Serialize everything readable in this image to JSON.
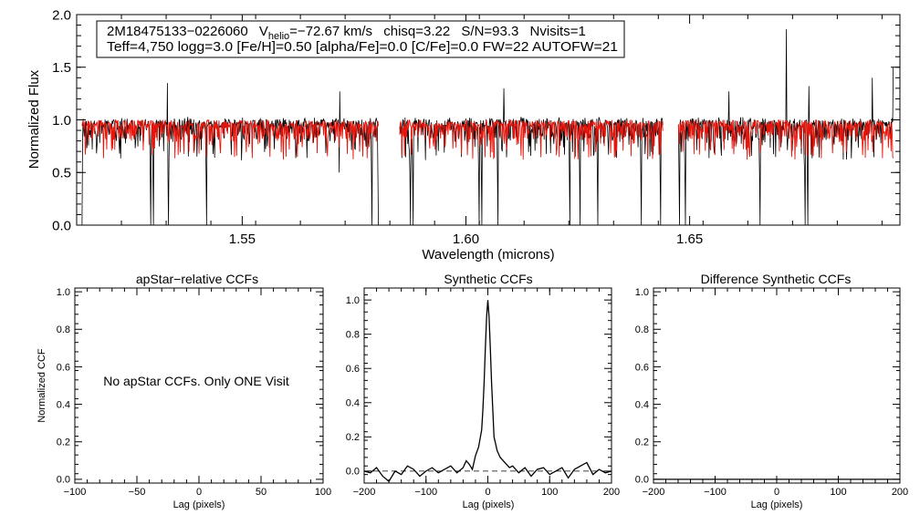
{
  "chart_data": [
    {
      "type": "line",
      "title": "",
      "xlabel": "Wavelength (microns)",
      "ylabel": "Normalized Flux",
      "xlim": [
        1.513,
        1.697
      ],
      "ylim": [
        0.0,
        2.0
      ],
      "xticks": [
        "1.55",
        "1.60",
        "1.65"
      ],
      "yticks": [
        "0.0",
        "0.5",
        "1.0",
        "1.5",
        "2.0"
      ],
      "info": {
        "star_id": "2M18475133−0226060",
        "vhelio_prefix": "V",
        "vhelio_sub": "helio",
        "vhelio_value": "=−72.67 km/s",
        "chisq": "chisq=3.22",
        "sn": "S/N=93.3",
        "nvisits": "Nvisits=1",
        "params_line": "Teff=4,750 logg=3.0 [Fe/H]=0.50 [alpha/Fe]=0.0 [C/Fe]=0.0 FW=22 AUTOFW=21"
      },
      "chips": [
        [
          1.5142,
          1.5805
        ],
        [
          1.5852,
          1.644
        ],
        [
          1.6475,
          1.6955
        ]
      ],
      "strong_lines": [
        1.5142,
        1.5296,
        1.5302,
        1.5335,
        1.542,
        1.5718,
        1.579,
        1.5805,
        1.5876,
        1.5882,
        1.603,
        1.6036,
        1.6072,
        1.6232,
        1.6255,
        1.6295,
        1.6392,
        1.6435,
        1.6478,
        1.649,
        1.6658,
        1.6758,
        1.6764
      ],
      "emission_spikes": [
        [
          1.5333,
          1.35
        ],
        [
          1.5718,
          1.27
        ],
        [
          1.6085,
          1.3
        ],
        [
          1.6588,
          1.27
        ],
        [
          1.6716,
          1.86
        ],
        [
          1.6766,
          1.32
        ],
        [
          1.6908,
          1.4
        ],
        [
          1.6955,
          1.5
        ]
      ],
      "series": [
        {
          "name": "observed spectrum",
          "color": "#000000"
        },
        {
          "name": "best-fit model",
          "color": "#e8150c"
        }
      ]
    },
    {
      "type": "line",
      "title": "apStar−relative CCFs",
      "xlabel": "Lag (pixels)",
      "ylabel": "Normalized CCF",
      "xlim": [
        -100,
        100
      ],
      "ylim": [
        -0.02,
        1.02
      ],
      "xticks": [
        "−100",
        "−50",
        "0",
        "50",
        "100"
      ],
      "yticks": [
        "0.0",
        "0.2",
        "0.4",
        "0.6",
        "0.8",
        "1.0"
      ],
      "message": "No apStar CCFs.  Only ONE Visit",
      "series": []
    },
    {
      "type": "line",
      "title": "Synthetic CCFs",
      "xlabel": "Lag (pixels)",
      "ylabel": "",
      "xlim": [
        -200,
        200
      ],
      "ylim": [
        -0.07,
        1.07
      ],
      "xticks": [
        "−200",
        "−100",
        "0",
        "100",
        "200"
      ],
      "yticks": [
        "0.0",
        "0.2",
        "0.4",
        "0.6",
        "0.8",
        "1.0"
      ],
      "peak": {
        "x": 0,
        "y": 1.0
      },
      "series": [
        {
          "name": "CCF",
          "x": [
            -200,
            -190,
            -180,
            -170,
            -160,
            -150,
            -140,
            -130,
            -120,
            -110,
            -100,
            -90,
            -80,
            -70,
            -60,
            -50,
            -40,
            -35,
            -30,
            -25,
            -20,
            -15,
            -10,
            -8,
            -6,
            -4,
            -2,
            0,
            2,
            4,
            6,
            8,
            10,
            15,
            20,
            25,
            30,
            35,
            40,
            50,
            60,
            70,
            80,
            90,
            100,
            110,
            120,
            130,
            140,
            150,
            160,
            170,
            180,
            190,
            200
          ],
          "y": [
            0.0,
            -0.01,
            0.02,
            -0.03,
            -0.06,
            0.0,
            -0.02,
            0.03,
            0.01,
            -0.03,
            0.0,
            0.02,
            -0.01,
            0.01,
            0.03,
            -0.01,
            0.02,
            0.06,
            0.04,
            0.01,
            0.09,
            0.14,
            0.24,
            0.36,
            0.52,
            0.72,
            0.9,
            1.0,
            0.9,
            0.72,
            0.52,
            0.36,
            0.2,
            0.12,
            0.08,
            0.06,
            0.04,
            0.02,
            0.03,
            -0.01,
            0.02,
            -0.03,
            0.01,
            0.02,
            -0.02,
            0.0,
            0.02,
            -0.04,
            0.01,
            0.03,
            0.05,
            -0.02,
            0.01,
            -0.01,
            0.0
          ]
        },
        {
          "name": "zero level",
          "x": [
            -200,
            200
          ],
          "y": [
            0.0,
            0.0
          ],
          "style": "dashed"
        }
      ]
    },
    {
      "type": "line",
      "title": "Difference Synthetic CCFs",
      "xlabel": "Lag (pixels)",
      "ylabel": "",
      "xlim": [
        -200,
        200
      ],
      "ylim": [
        -0.02,
        1.02
      ],
      "xticks": [
        "−200",
        "−100",
        "0",
        "100",
        "200"
      ],
      "yticks": [
        "0.0",
        "0.2",
        "0.4",
        "0.6",
        "0.8",
        "1.0"
      ],
      "series": [
        {
          "name": "difference CCF",
          "x": [
            -200,
            200
          ],
          "y": [
            0.0,
            0.0
          ]
        }
      ]
    }
  ]
}
